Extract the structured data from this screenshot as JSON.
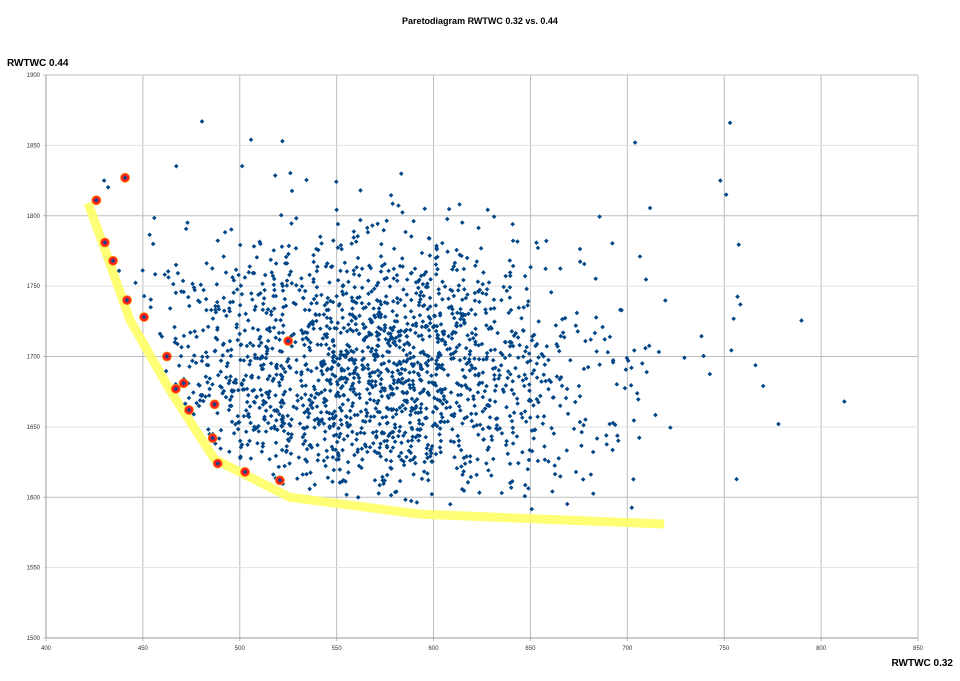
{
  "chart_data": {
    "type": "scatter",
    "title": "Paretodiagram RWTWC 0.32 vs. 0.44",
    "xlabel": "RWTWC 0.32",
    "ylabel": "RWTWC 0.44",
    "xlim": [
      400,
      850
    ],
    "ylim": [
      1500,
      1900
    ],
    "xticks": [
      "400",
      "450",
      "500",
      "550",
      "600",
      "650",
      "700",
      "750",
      "800",
      "850"
    ],
    "yticks": [
      "1500",
      "1550",
      "1600",
      "1650",
      "1700",
      "1750",
      "1800",
      "1850",
      "1900"
    ],
    "grid": true,
    "legend": "none",
    "colors": {
      "points": "#004586",
      "pareto": "#ff2020",
      "pareto_ring": "#ff8c00",
      "front": "#ffff66"
    },
    "cloud": {
      "count": 1900,
      "center": [
        565,
        1690
      ],
      "std": [
        62,
        48
      ],
      "seed": 7
    },
    "outliers": [
      [
        480.5,
        1867
      ],
      [
        505.8,
        1854
      ],
      [
        522,
        1853
      ],
      [
        753,
        1866
      ],
      [
        704,
        1852
      ],
      [
        812,
        1668
      ],
      [
        778,
        1652
      ],
      [
        751,
        1815
      ],
      [
        748,
        1825
      ],
      [
        430,
        1825
      ]
    ],
    "pareto_points": [
      [
        426,
        1811
      ],
      [
        440.8,
        1827
      ],
      [
        430.4,
        1781
      ],
      [
        434.6,
        1768
      ],
      [
        441.8,
        1740
      ],
      [
        450.6,
        1728
      ],
      [
        462.4,
        1700
      ],
      [
        467,
        1677
      ],
      [
        471,
        1681
      ],
      [
        473.8,
        1662
      ],
      [
        487,
        1666
      ],
      [
        486,
        1642
      ],
      [
        488.6,
        1624
      ],
      [
        502.7,
        1618
      ],
      [
        520.7,
        1612
      ],
      [
        525,
        1711
      ]
    ],
    "pareto_front": [
      [
        421.7,
        1809
      ],
      [
        430.4,
        1776
      ],
      [
        443.3,
        1726
      ],
      [
        464,
        1676
      ],
      [
        487,
        1627
      ],
      [
        525.7,
        1600
      ],
      [
        592.7,
        1588
      ],
      [
        719,
        1581
      ]
    ]
  }
}
